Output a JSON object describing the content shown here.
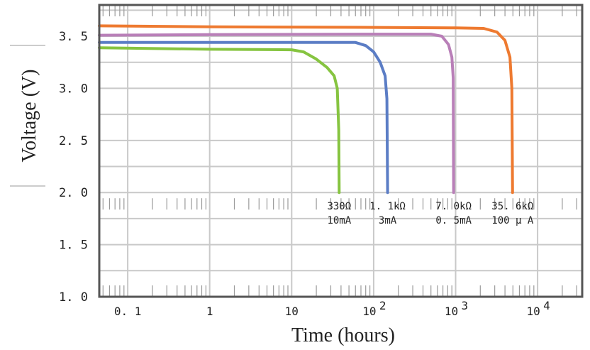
{
  "chart_data": {
    "type": "line",
    "xlabel": "Time (hours)",
    "ylabel": "Voltage (V)",
    "xscale": "log",
    "xlim": [
      0.045,
      35000
    ],
    "ylim": [
      1.0,
      3.8
    ],
    "x_ticks": [
      {
        "value": 0.1,
        "label": "0. 1"
      },
      {
        "value": 1,
        "label": "1"
      },
      {
        "value": 10,
        "label": "10"
      },
      {
        "value": 100,
        "label": "10",
        "exp": "2"
      },
      {
        "value": 1000,
        "label": "10",
        "exp": "3"
      },
      {
        "value": 10000,
        "label": "10",
        "exp": "4"
      }
    ],
    "y_ticks": [
      "1. 0",
      "1. 5",
      "2. 0",
      "2. 5",
      "3. 0",
      "3. 5"
    ],
    "y_tick_values": [
      1.0,
      1.5,
      2.0,
      2.5,
      3.0,
      3.5
    ],
    "grid": true,
    "series": [
      {
        "color": "#86c440",
        "label_lines": [
          "330Ω",
          "10mA"
        ],
        "points": [
          [
            0.045,
            3.39
          ],
          [
            1,
            3.375
          ],
          [
            10,
            3.37
          ],
          [
            14,
            3.35
          ],
          [
            20,
            3.28
          ],
          [
            27,
            3.2
          ],
          [
            33,
            3.12
          ],
          [
            36,
            3.0
          ],
          [
            37.5,
            2.6
          ],
          [
            38,
            2.0
          ]
        ]
      },
      {
        "color": "#5b7dc5",
        "label_lines": [
          "1. 1kΩ",
          "3mA"
        ],
        "points": [
          [
            0.045,
            3.44
          ],
          [
            1,
            3.44
          ],
          [
            10,
            3.44
          ],
          [
            60,
            3.44
          ],
          [
            80,
            3.41
          ],
          [
            100,
            3.35
          ],
          [
            120,
            3.25
          ],
          [
            138,
            3.12
          ],
          [
            145,
            2.9
          ],
          [
            148,
            2.0
          ]
        ]
      },
      {
        "color": "#b97fb8",
        "label_lines": [
          "7. 0kΩ",
          "0. 5mA"
        ],
        "points": [
          [
            0.045,
            3.51
          ],
          [
            1,
            3.515
          ],
          [
            100,
            3.52
          ],
          [
            500,
            3.52
          ],
          [
            680,
            3.5
          ],
          [
            820,
            3.42
          ],
          [
            900,
            3.3
          ],
          [
            935,
            3.1
          ],
          [
            945,
            2.0
          ]
        ]
      },
      {
        "color": "#ee7a30",
        "label_lines": [
          "35. 6kΩ",
          "100 μ A"
        ],
        "points": [
          [
            0.045,
            3.6
          ],
          [
            1,
            3.59
          ],
          [
            100,
            3.585
          ],
          [
            1000,
            3.58
          ],
          [
            2200,
            3.575
          ],
          [
            3200,
            3.54
          ],
          [
            4000,
            3.46
          ],
          [
            4600,
            3.3
          ],
          [
            4850,
            3.0
          ],
          [
            4950,
            2.0
          ]
        ]
      }
    ]
  }
}
